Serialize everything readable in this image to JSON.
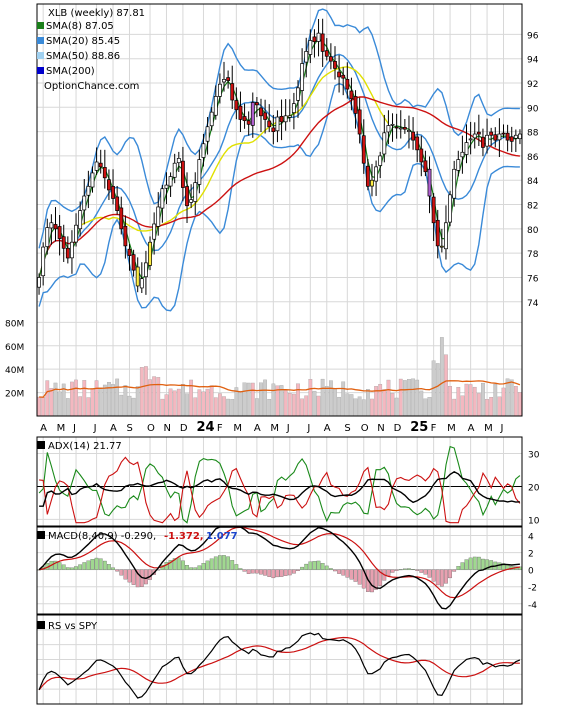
{
  "colors": {
    "background": "#ffffff",
    "grid": "#d8d8d8",
    "frame": "#000000",
    "sma8": "#1a7f1a",
    "sma20_bands": "#3a8ad8",
    "sma50": "#e0e000",
    "sma200": "#cc1111",
    "volume_up": "#f4b8c0",
    "volume_down": "#cccccc",
    "volume_avg": "#e06010",
    "candle_up": "#ffffff",
    "candle_down": "#cc1111",
    "candle_alt": "#ffee44",
    "candle_alt2": "#b060d0",
    "adx": "#000000",
    "plus_di": "#1a8a1a",
    "minus_di": "#cc1111",
    "macd": "#000000",
    "macd_signal": "#cc1111",
    "hist_pos": "#a0d890",
    "hist_neg": "#e8a0b0",
    "rs": "#000000",
    "rs_ma": "#cc1111",
    "legend_sma200_swatch": "#0000cc",
    "macd_value_color": "#cc1111",
    "macd_signal_value_color": "#1a44cc"
  },
  "legend": {
    "title": "XLB (weekly) 87.81",
    "sma8": "SMA(8) 87.05",
    "sma20": "SMA(20) 85.45",
    "sma50": "SMA(50) 88.86",
    "sma200": "SMA(200)",
    "watermark": "OptionChance.com"
  },
  "adx_label": "ADX(14) 21.77",
  "macd_label": "MACD(8,40,9) -0.290,",
  "macd_value": "-1.372,",
  "macd_signal_value": "1.077",
  "rs_label": "RS vs SPY",
  "chart_data": {
    "type": "candlestick",
    "title": "XLB (weekly) 87.81",
    "price_axis": {
      "ticks": [
        74,
        76,
        78,
        80,
        82,
        84,
        86,
        88,
        90,
        92,
        94,
        96
      ],
      "range": [
        72.5,
        98.5
      ]
    },
    "volume_axis": {
      "ticks": [
        "20M",
        "40M",
        "60M",
        "80M"
      ],
      "tick_values": [
        20,
        40,
        60,
        80
      ],
      "range": [
        0,
        82
      ]
    },
    "adx_axis": {
      "ticks": [
        10,
        20,
        30
      ],
      "range": [
        8,
        35
      ]
    },
    "macd_axis": {
      "ticks": [
        -4,
        -2,
        0,
        2,
        4
      ],
      "range": [
        -5.2,
        5
      ]
    },
    "x_labels": [
      "A",
      "M",
      "J",
      "J",
      "A",
      "S",
      "O",
      "N",
      "D",
      "24",
      "F",
      "M",
      "A",
      "M",
      "J",
      "J",
      "A",
      "S",
      "O",
      "N",
      "D",
      "25",
      "F",
      "M",
      "A",
      "M",
      "J"
    ],
    "x_label_weeks": [
      1,
      5,
      9,
      14,
      18,
      22,
      27,
      31,
      35,
      40,
      44,
      48,
      53,
      57,
      61,
      66,
      70,
      75,
      79,
      83,
      87,
      92,
      96,
      100,
      105,
      109,
      113
    ],
    "bold_labels": [
      "24",
      "25"
    ],
    "num_weeks": 118,
    "closes": [
      76.0,
      78.5,
      80.1,
      80.5,
      80.0,
      79.2,
      78.4,
      77.6,
      78.9,
      80.3,
      81.5,
      82.7,
      83.5,
      84.6,
      85.5,
      85.1,
      84.2,
      83.2,
      82.5,
      81.5,
      80.0,
      78.6,
      77.8,
      76.6,
      75.3,
      75.9,
      77.2,
      78.9,
      80.4,
      81.8,
      83.3,
      83.6,
      84.3,
      85.4,
      85.8,
      83.4,
      81.9,
      82.4,
      83.8,
      85.7,
      87.0,
      88.4,
      89.6,
      90.9,
      91.9,
      92.3,
      92.2,
      90.6,
      89.8,
      89.0,
      88.9,
      88.6,
      90.4,
      90.2,
      89.3,
      89.0,
      88.4,
      88.0,
      89.2,
      88.8,
      89.3,
      89.3,
      90.3,
      91.6,
      93.6,
      94.6,
      95.5,
      95.4,
      96.1,
      94.6,
      94.2,
      93.8,
      93.2,
      92.5,
      92.4,
      91.5,
      90.7,
      89.5,
      87.8,
      85.4,
      83.5,
      84.0,
      85.1,
      86.0,
      87.9,
      88.5,
      88.6,
      88.3,
      88.3,
      88.2,
      88.1,
      87.3,
      86.5,
      85.5,
      84.7,
      82.7,
      80.5,
      78.6,
      78.5,
      80.5,
      82.8,
      84.9,
      85.7,
      86.3,
      87.1,
      87.4,
      87.8,
      87.8,
      86.7,
      87.7,
      87.7,
      87.3,
      87.8,
      87.8,
      87.3,
      87.2,
      87.7,
      87.8
    ],
    "bands": {
      "sma20": 85.45,
      "sma50": 88.86,
      "sma8": 87.05
    },
    "volume_scale_m": 82
  }
}
